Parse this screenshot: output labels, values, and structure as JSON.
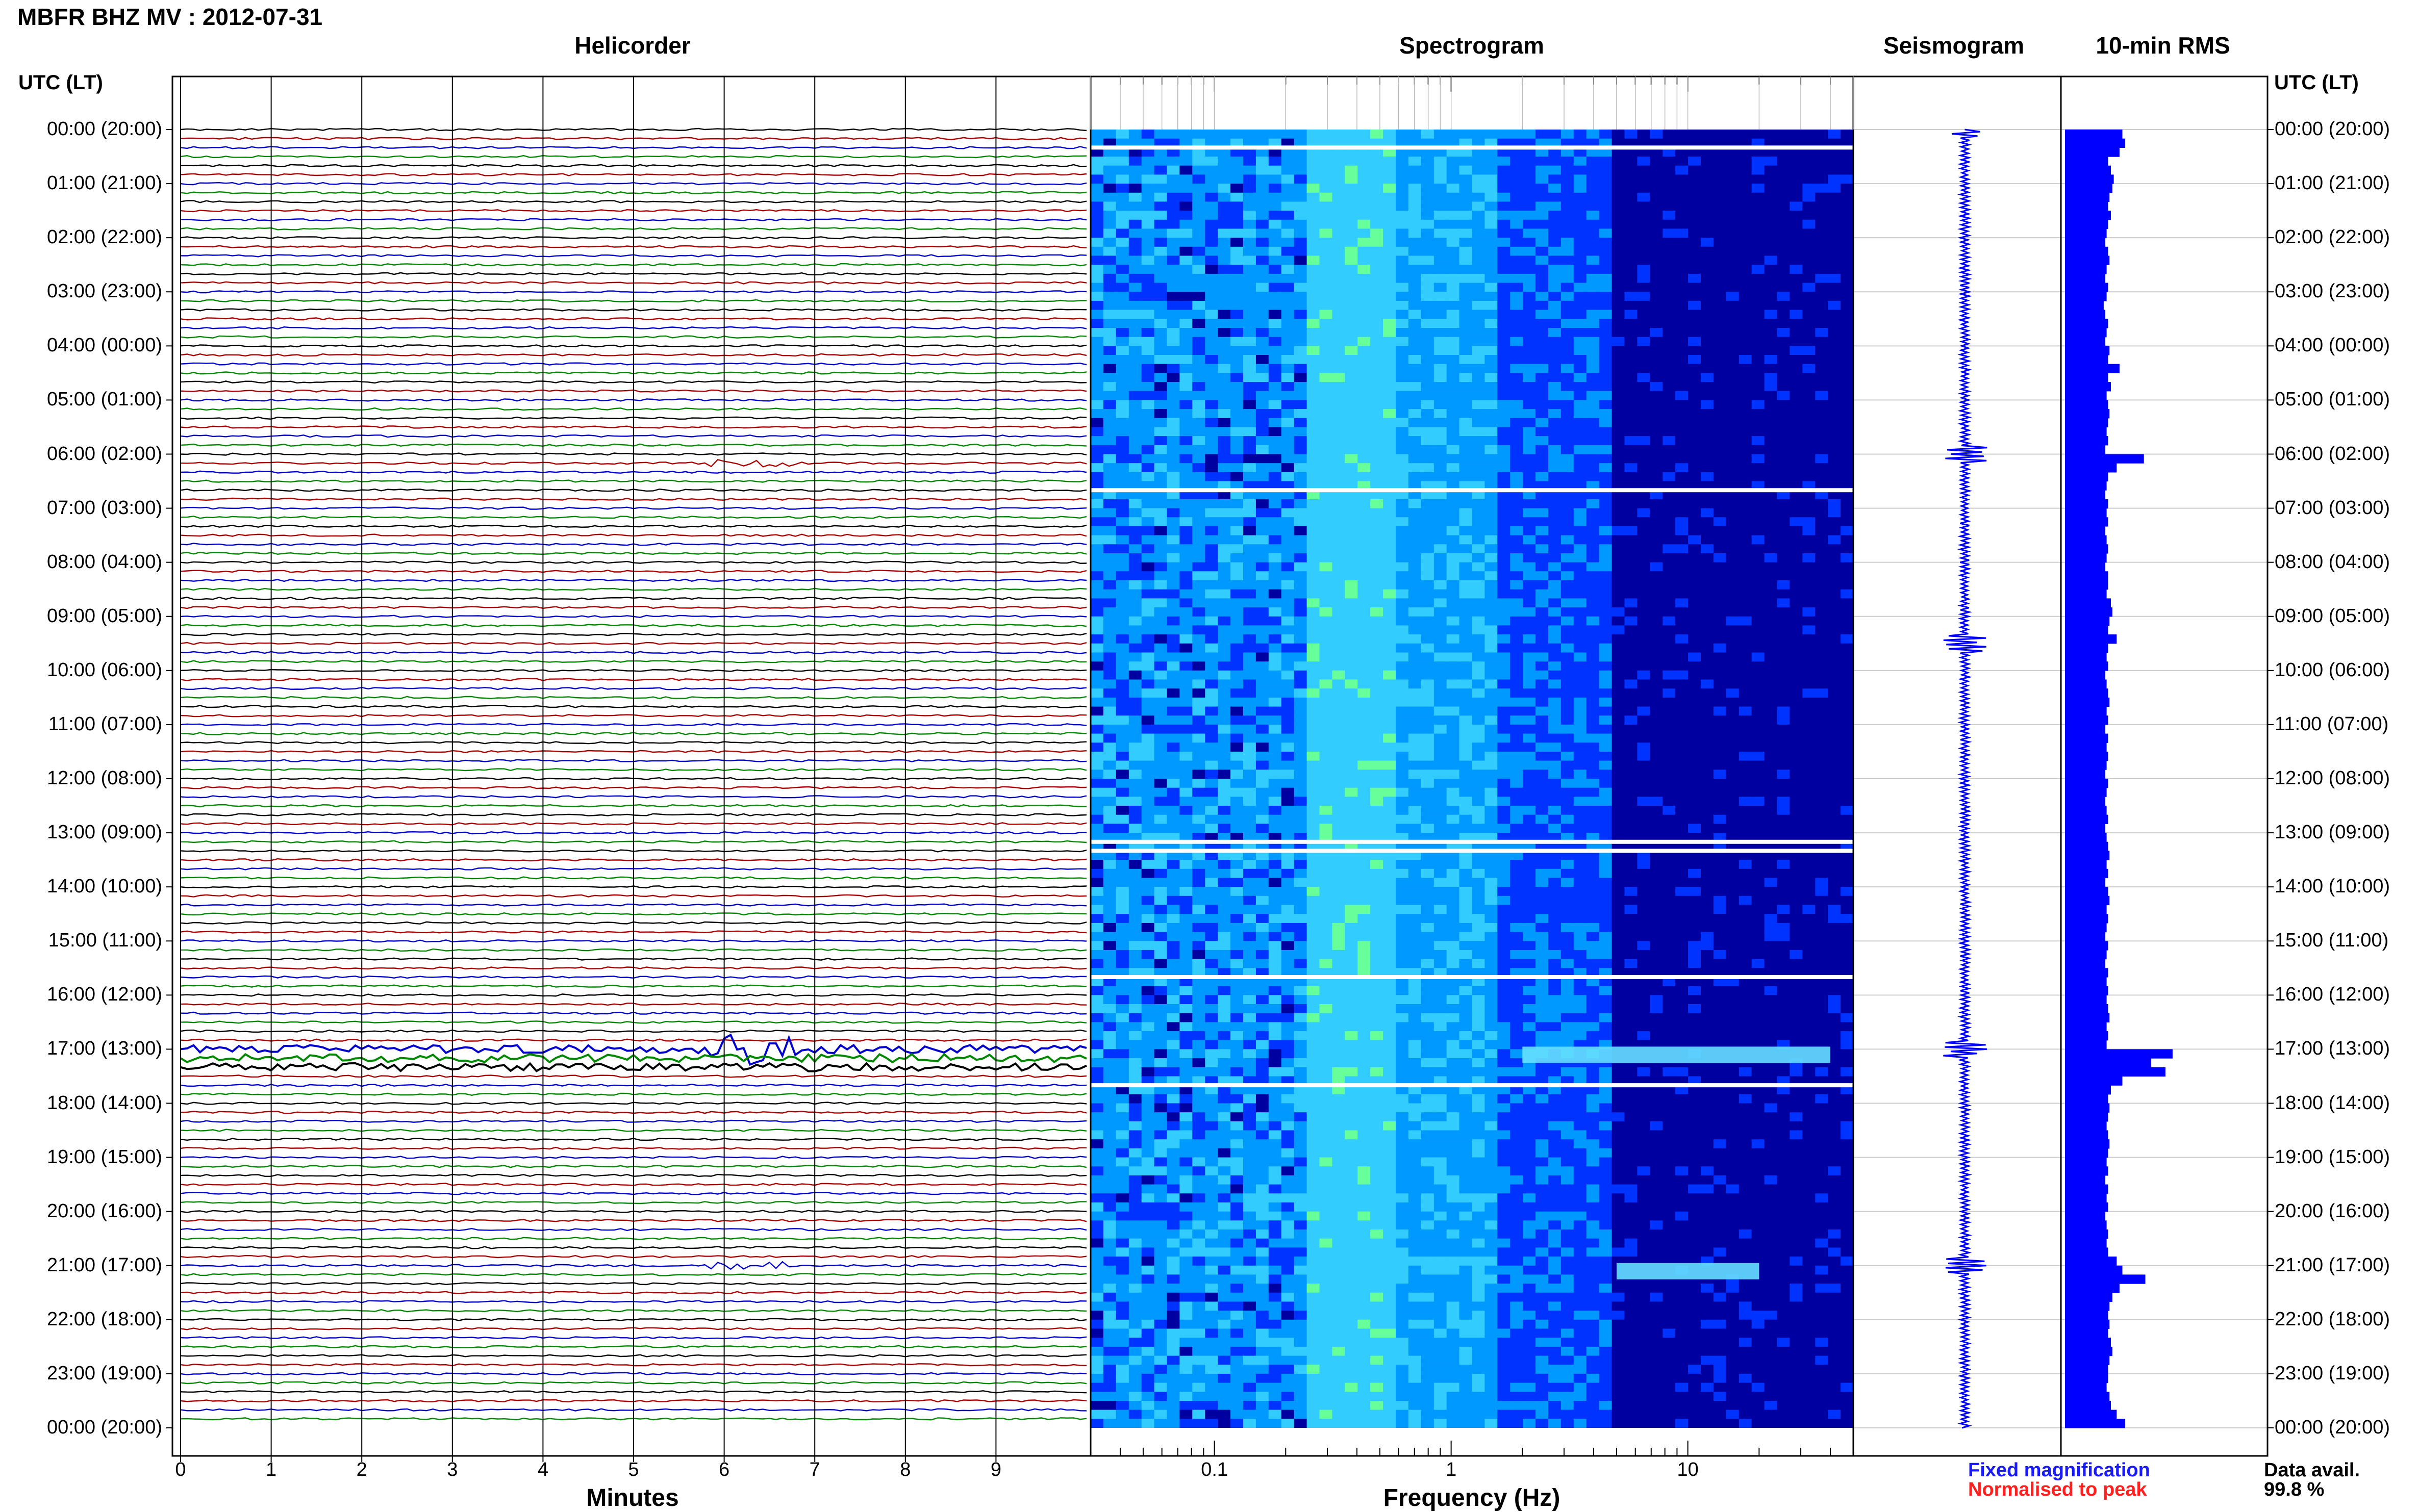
{
  "title": "MBFR BHZ MV : 2012-07-31",
  "panels": {
    "helicorder": "Helicorder",
    "spectrogram": "Spectrogram",
    "seismogram": "Seismogram",
    "rms": "10-min RMS"
  },
  "time_axis": {
    "header_left": "UTC (LT)",
    "header_right": "UTC (LT)",
    "labels": [
      "00:00 (20:00)",
      "01:00 (21:00)",
      "02:00 (22:00)",
      "03:00 (23:00)",
      "04:00 (00:00)",
      "05:00 (01:00)",
      "06:00 (02:00)",
      "07:00 (03:00)",
      "08:00 (04:00)",
      "09:00 (05:00)",
      "10:00 (06:00)",
      "11:00 (07:00)",
      "12:00 (08:00)",
      "13:00 (09:00)",
      "14:00 (10:00)",
      "15:00 (11:00)",
      "16:00 (12:00)",
      "17:00 (13:00)",
      "18:00 (14:00)",
      "19:00 (15:00)",
      "20:00 (16:00)",
      "21:00 (17:00)",
      "22:00 (18:00)",
      "23:00 (19:00)",
      "00:00 (20:00)"
    ]
  },
  "legend": {
    "fixed": "Fixed magnification",
    "normalised": "Normalised to peak",
    "avail_label": "Data avail.",
    "avail_value": "99.8 %"
  },
  "colors": {
    "trace_cycle": [
      "#000000",
      "#aa0000",
      "#0000cc",
      "#008800"
    ],
    "rms": "#0000ff",
    "seismogram": "#0000ff"
  },
  "chart_data": [
    {
      "type": "line",
      "title": "Helicorder",
      "xlabel": "Minutes",
      "x_ticks": [
        "0",
        "1",
        "2",
        "3",
        "4",
        "5",
        "6",
        "7",
        "8",
        "9"
      ],
      "xlim": [
        0,
        10
      ],
      "rows_per_hour": 6,
      "total_rows": 144,
      "ylim": [
        "00:00",
        "00:00"
      ],
      "high_amplitude_hours": [
        "17:00"
      ],
      "events": [
        {
          "time": "06:00",
          "minute": 6.5
        },
        {
          "time": "17:00",
          "minute": 0
        },
        {
          "time": "21:00",
          "minute": 0
        }
      ]
    },
    {
      "type": "heatmap",
      "title": "Spectrogram",
      "xlabel": "Frequency (Hz)",
      "x_scale": "log",
      "x_ticks": [
        "0.1",
        "1",
        "10"
      ],
      "xlim": [
        0.03,
        50
      ],
      "gaps_utc": [
        "00:20",
        "06:40",
        "13:10",
        "13:20",
        "15:40",
        "17:40"
      ],
      "energy_bands": [
        {
          "time": "17:00",
          "freq_range": [
            2,
            40
          ]
        },
        {
          "time": "21:00",
          "freq_range": [
            5,
            20
          ]
        }
      ],
      "colormap": [
        "#0000a0",
        "#0033ff",
        "#0099ff",
        "#33ccff",
        "#66ff99"
      ]
    },
    {
      "type": "line",
      "title": "Seismogram",
      "spikes_utc": [
        "00:00",
        "06:00",
        "09:30",
        "17:00",
        "21:00"
      ]
    },
    {
      "type": "bar",
      "title": "10-min RMS",
      "orientation": "horizontal",
      "time_step_minutes": 10,
      "relative_values": [
        0.4,
        0.42,
        0.38,
        0.3,
        0.32,
        0.34,
        0.33,
        0.31,
        0.3,
        0.32,
        0.3,
        0.29,
        0.28,
        0.3,
        0.31,
        0.29,
        0.28,
        0.3,
        0.29,
        0.27,
        0.28,
        0.3,
        0.29,
        0.28,
        0.31,
        0.3,
        0.38,
        0.3,
        0.32,
        0.29,
        0.3,
        0.31,
        0.3,
        0.29,
        0.3,
        0.28,
        0.55,
        0.36,
        0.3,
        0.29,
        0.28,
        0.3,
        0.29,
        0.3,
        0.28,
        0.29,
        0.3,
        0.29,
        0.28,
        0.3,
        0.3,
        0.29,
        0.32,
        0.33,
        0.31,
        0.3,
        0.36,
        0.3,
        0.29,
        0.3,
        0.28,
        0.29,
        0.3,
        0.31,
        0.29,
        0.3,
        0.28,
        0.3,
        0.29,
        0.3,
        0.29,
        0.28,
        0.3,
        0.29,
        0.28,
        0.29,
        0.3,
        0.28,
        0.29,
        0.3,
        0.31,
        0.29,
        0.3,
        0.28,
        0.3,
        0.31,
        0.29,
        0.3,
        0.29,
        0.28,
        0.3,
        0.29,
        0.28,
        0.3,
        0.29,
        0.3,
        0.29,
        0.3,
        0.31,
        0.29,
        0.3,
        0.29,
        0.75,
        0.6,
        0.7,
        0.4,
        0.32,
        0.3,
        0.31,
        0.3,
        0.29,
        0.3,
        0.31,
        0.3,
        0.29,
        0.3,
        0.28,
        0.3,
        0.29,
        0.3,
        0.28,
        0.29,
        0.3,
        0.29,
        0.3,
        0.36,
        0.4,
        0.56,
        0.38,
        0.33,
        0.31,
        0.3,
        0.31,
        0.3,
        0.32,
        0.33,
        0.31,
        0.3,
        0.3,
        0.29,
        0.31,
        0.32,
        0.36,
        0.42
      ],
      "xlim": [
        0,
        1
      ]
    }
  ]
}
